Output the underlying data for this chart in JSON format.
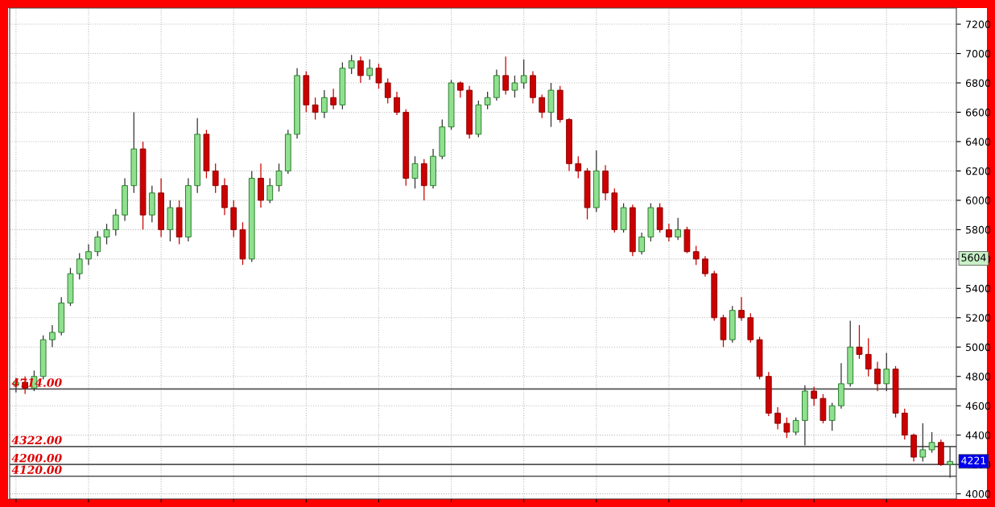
{
  "chart_data": {
    "type": "candlestick",
    "categories": [
      null,
      null,
      null,
      null,
      null,
      null,
      null,
      null,
      null,
      null,
      null,
      null,
      null,
      null,
      null,
      null,
      null,
      null,
      null,
      null,
      null,
      null,
      null,
      null,
      null,
      null,
      null,
      null,
      null,
      null,
      null,
      null,
      null,
      null,
      null,
      null,
      null,
      null,
      null,
      null,
      null,
      null,
      null,
      null,
      null,
      null,
      null,
      null,
      null,
      null,
      null,
      null,
      null,
      null,
      null,
      null,
      null,
      null,
      null,
      null,
      null,
      null,
      null,
      null,
      null,
      null,
      null,
      null,
      null,
      null,
      null,
      null,
      null,
      null,
      null,
      null,
      null,
      null,
      null,
      null,
      null,
      null,
      null,
      null,
      null,
      null,
      null,
      null,
      null,
      null,
      null,
      null,
      null,
      null,
      null,
      null,
      null,
      null,
      null,
      null,
      null,
      null,
      null,
      null
    ],
    "ohlc": [
      [
        4740,
        4790,
        4690,
        4760
      ],
      [
        4760,
        4800,
        4680,
        4720
      ],
      [
        4720,
        4840,
        4700,
        4800
      ],
      [
        4800,
        5080,
        4780,
        5050
      ],
      [
        5050,
        5150,
        5000,
        5100
      ],
      [
        5100,
        5340,
        5080,
        5300
      ],
      [
        5300,
        5540,
        5280,
        5500
      ],
      [
        5500,
        5640,
        5460,
        5600
      ],
      [
        5600,
        5700,
        5560,
        5650
      ],
      [
        5650,
        5790,
        5620,
        5750
      ],
      [
        5750,
        5840,
        5700,
        5800
      ],
      [
        5800,
        5940,
        5760,
        5900
      ],
      [
        5900,
        6150,
        5860,
        6100
      ],
      [
        6100,
        6600,
        6050,
        6350
      ],
      [
        6350,
        6400,
        5800,
        5900
      ],
      [
        5900,
        6100,
        5850,
        6050
      ],
      [
        6050,
        6150,
        5750,
        5800
      ],
      [
        5800,
        6000,
        5720,
        5950
      ],
      [
        5950,
        6000,
        5700,
        5750
      ],
      [
        5750,
        6150,
        5720,
        6100
      ],
      [
        6100,
        6560,
        6050,
        6450
      ],
      [
        6450,
        6480,
        6150,
        6200
      ],
      [
        6200,
        6250,
        6050,
        6100
      ],
      [
        6100,
        6150,
        5900,
        5950
      ],
      [
        5950,
        6000,
        5750,
        5800
      ],
      [
        5800,
        5850,
        5560,
        5600
      ],
      [
        5600,
        6200,
        5580,
        6150
      ],
      [
        6150,
        6250,
        5950,
        6000
      ],
      [
        6000,
        6150,
        5980,
        6100
      ],
      [
        6100,
        6250,
        6060,
        6200
      ],
      [
        6200,
        6480,
        6180,
        6450
      ],
      [
        6450,
        6900,
        6420,
        6850
      ],
      [
        6850,
        6880,
        6600,
        6650
      ],
      [
        6650,
        6700,
        6550,
        6600
      ],
      [
        6600,
        6750,
        6560,
        6700
      ],
      [
        6700,
        6760,
        6620,
        6650
      ],
      [
        6650,
        6940,
        6620,
        6900
      ],
      [
        6900,
        6990,
        6860,
        6950
      ],
      [
        6950,
        6980,
        6800,
        6850
      ],
      [
        6850,
        6960,
        6820,
        6900
      ],
      [
        6900,
        6930,
        6760,
        6800
      ],
      [
        6800,
        6830,
        6660,
        6700
      ],
      [
        6700,
        6740,
        6580,
        6600
      ],
      [
        6600,
        6620,
        6100,
        6150
      ],
      [
        6150,
        6300,
        6080,
        6250
      ],
      [
        6250,
        6280,
        6000,
        6100
      ],
      [
        6100,
        6350,
        6080,
        6300
      ],
      [
        6300,
        6550,
        6280,
        6500
      ],
      [
        6500,
        6820,
        6480,
        6800
      ],
      [
        6800,
        6810,
        6700,
        6750
      ],
      [
        6750,
        6780,
        6420,
        6450
      ],
      [
        6450,
        6680,
        6430,
        6650
      ],
      [
        6650,
        6740,
        6620,
        6700
      ],
      [
        6700,
        6890,
        6680,
        6850
      ],
      [
        6850,
        6980,
        6720,
        6750
      ],
      [
        6750,
        6850,
        6700,
        6800
      ],
      [
        6800,
        6960,
        6760,
        6850
      ],
      [
        6850,
        6880,
        6660,
        6700
      ],
      [
        6700,
        6720,
        6560,
        6600
      ],
      [
        6600,
        6800,
        6500,
        6750
      ],
      [
        6750,
        6780,
        6530,
        6550
      ],
      [
        6550,
        6560,
        6200,
        6250
      ],
      [
        6250,
        6300,
        6150,
        6200
      ],
      [
        6200,
        6220,
        5870,
        5950
      ],
      [
        5950,
        6340,
        5920,
        6200
      ],
      [
        6200,
        6240,
        6000,
        6050
      ],
      [
        6050,
        6080,
        5780,
        5800
      ],
      [
        5800,
        5980,
        5780,
        5950
      ],
      [
        5950,
        5970,
        5620,
        5650
      ],
      [
        5650,
        5780,
        5630,
        5750
      ],
      [
        5750,
        5980,
        5720,
        5950
      ],
      [
        5950,
        5980,
        5780,
        5800
      ],
      [
        5800,
        5840,
        5720,
        5750
      ],
      [
        5750,
        5880,
        5730,
        5800
      ],
      [
        5800,
        5820,
        5640,
        5650
      ],
      [
        5650,
        5690,
        5560,
        5600
      ],
      [
        5600,
        5620,
        5480,
        5500
      ],
      [
        5500,
        5520,
        5180,
        5200
      ],
      [
        5200,
        5220,
        5000,
        5050
      ],
      [
        5050,
        5280,
        5030,
        5250
      ],
      [
        5250,
        5340,
        5180,
        5200
      ],
      [
        5200,
        5230,
        5030,
        5050
      ],
      [
        5050,
        5070,
        4780,
        4800
      ],
      [
        4800,
        4830,
        4530,
        4550
      ],
      [
        4550,
        4590,
        4440,
        4480
      ],
      [
        4480,
        4520,
        4380,
        4420
      ],
      [
        4420,
        4520,
        4400,
        4500
      ],
      [
        4500,
        4740,
        4330,
        4700
      ],
      [
        4700,
        4730,
        4600,
        4650
      ],
      [
        4650,
        4680,
        4480,
        4500
      ],
      [
        4500,
        4620,
        4430,
        4600
      ],
      [
        4600,
        4890,
        4580,
        4750
      ],
      [
        4750,
        5180,
        4730,
        5000
      ],
      [
        5000,
        5150,
        4920,
        4950
      ],
      [
        4950,
        5060,
        4800,
        4850
      ],
      [
        4850,
        4900,
        4700,
        4750
      ],
      [
        4750,
        4960,
        4700,
        4850
      ],
      [
        4850,
        4870,
        4520,
        4550
      ],
      [
        4550,
        4580,
        4370,
        4400
      ],
      [
        4400,
        4410,
        4220,
        4250
      ],
      [
        4250,
        4480,
        4220,
        4300
      ],
      [
        4300,
        4420,
        4280,
        4350
      ],
      [
        4350,
        4370,
        4190,
        4200
      ],
      [
        4200,
        4320,
        4110,
        4221
      ]
    ],
    "ylim": [
      3965,
      7310
    ],
    "yticks": [
      4000,
      4200,
      4400,
      4600,
      4800,
      5000,
      5200,
      5400,
      5600,
      5800,
      6000,
      6200,
      6400,
      6600,
      6800,
      7000,
      7200
    ],
    "ref_lines": [
      {
        "axis": "y",
        "value": 4714,
        "label": "4714.00",
        "color": "#555555"
      },
      {
        "axis": "y",
        "value": 4322,
        "label": "4322.00",
        "color": "#555555"
      },
      {
        "axis": "y",
        "value": 4200,
        "label": "4200.00",
        "color": "#555555"
      },
      {
        "axis": "y",
        "value": 4120,
        "label": "4120.00",
        "color": "#555555"
      }
    ],
    "annotations": [
      "5604",
      "4221"
    ],
    "grid": true,
    "legend": false
  }
}
